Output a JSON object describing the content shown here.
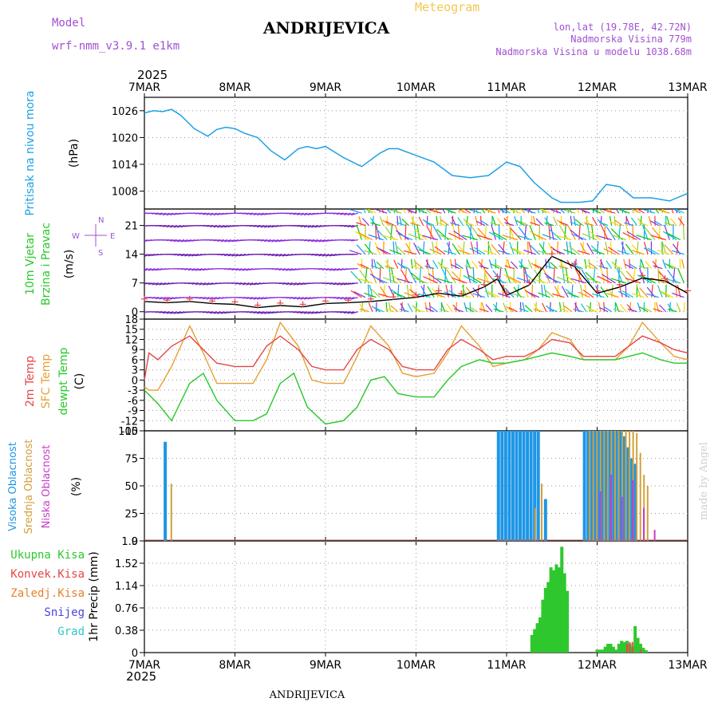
{
  "header": {
    "title": "ANDRIJEVICA",
    "product": "Meteogram",
    "model_label": "Model",
    "model_name": "wrf-nmm_v3.9.1 e1km",
    "coords": "lon,lat (19.78E, 42.72N)",
    "elevation": "Nadmorska Visina 779m",
    "model_elevation": "Nadmorska Visina u modelu 1038.68m",
    "watermark": "made by Angel",
    "footer": "ANDRIJEVICA",
    "year_top": "2025",
    "year_bottom": "2025"
  },
  "colors": {
    "pressure": "#1ea0e6",
    "temp2m": "#e64646",
    "sfc": "#e6a032",
    "dewpt": "#28c828",
    "high_cloud": "#1e96e6",
    "mid_cloud": "#d2a03c",
    "low_cloud": "#c83cc8",
    "total_precip": "#2ec82e",
    "conv_precip": "#e64646",
    "frozen_precip": "#e6822d",
    "snow": "#4646dc",
    "hail": "#2dc8c8",
    "purple_text": "#a050d2",
    "title_gold": "#f0c850"
  },
  "chart_data": [
    {
      "type": "line",
      "panel": "pressure",
      "ylabel_lines": [
        "Pritisak na nivou mora",
        "(hPa)"
      ],
      "yticks": [
        1008,
        1014,
        1020,
        1026
      ],
      "ylim": [
        1004,
        1029
      ],
      "x_categories": [
        "7MAR",
        "8MAR",
        "9MAR",
        "10MAR",
        "11MAR",
        "12MAR",
        "13MAR"
      ],
      "grid": true,
      "series": [
        {
          "x": [
            0,
            0.1,
            0.2,
            0.3,
            0.4,
            0.55,
            0.7,
            0.8,
            0.9,
            1.0,
            1.1,
            1.25,
            1.4,
            1.55,
            1.7,
            1.8,
            1.9,
            2.0,
            2.2,
            2.4,
            2.6,
            2.7,
            2.8,
            3.0,
            3.2,
            3.4,
            3.6,
            3.8,
            4.0,
            4.15,
            4.3,
            4.5,
            4.6,
            4.8,
            4.95,
            5.1,
            5.25,
            5.4,
            5.6,
            5.8,
            6.0
          ],
          "values": [
            1025.5,
            1026,
            1025.8,
            1026.3,
            1025,
            1022,
            1020.3,
            1021.8,
            1022.3,
            1022,
            1021,
            1020,
            1017,
            1015,
            1017.5,
            1018,
            1017.5,
            1018,
            1015.5,
            1013.5,
            1016.5,
            1017.5,
            1017.5,
            1016,
            1014.5,
            1011.5,
            1011,
            1011.5,
            1014.5,
            1013.5,
            1010,
            1006.5,
            1005.5,
            1005.5,
            1005.8,
            1009.5,
            1009,
            1006.5,
            1006.5,
            1005.8,
            1007.5
          ]
        }
      ]
    },
    {
      "type": "line",
      "panel": "wind",
      "ylabel_lines": [
        "10m Vjetar",
        "Brzina i Pravac",
        "(m/s)"
      ],
      "yticks": [
        0,
        7,
        14,
        21
      ],
      "ylim": [
        -1.8,
        25
      ],
      "compass_labels": [
        "N",
        "E",
        "S",
        "W"
      ],
      "grid": true,
      "series": [
        {
          "name": "Brzina",
          "x": [
            0,
            0.25,
            0.5,
            0.75,
            1.0,
            1.25,
            1.5,
            1.75,
            2.0,
            2.25,
            2.5,
            2.75,
            3.0,
            3.25,
            3.5,
            3.75,
            3.9,
            4.0,
            4.25,
            4.5,
            4.75,
            5.0,
            5.25,
            5.5,
            5.75,
            6.0
          ],
          "values": [
            2.5,
            2.2,
            2.5,
            2.0,
            1.8,
            1.0,
            1.5,
            1.2,
            2.0,
            2.2,
            2.5,
            3.0,
            3.5,
            4.5,
            3.8,
            6.0,
            8.0,
            4.0,
            6.5,
            13.5,
            11.0,
            4.5,
            6.0,
            8.2,
            7.5,
            4.5
          ]
        }
      ]
    },
    {
      "type": "line",
      "panel": "temperature",
      "ylabel_lines": [
        "2m Temp",
        "SFC Temp",
        "dewpt Temp",
        "(C)"
      ],
      "yticks": [
        -15,
        -12,
        -9,
        -6,
        -3,
        0,
        3,
        6,
        9,
        12,
        15,
        18
      ],
      "ylim": [
        -15,
        18
      ],
      "grid": true,
      "series": [
        {
          "name": "2m Temp",
          "x": [
            0,
            0.05,
            0.15,
            0.3,
            0.5,
            0.65,
            0.8,
            1.0,
            1.2,
            1.35,
            1.5,
            1.7,
            1.85,
            2.0,
            2.2,
            2.35,
            2.5,
            2.7,
            2.85,
            3.0,
            3.2,
            3.35,
            3.5,
            3.7,
            3.85,
            4.0,
            4.2,
            4.35,
            4.5,
            4.7,
            4.85,
            5.0,
            5.2,
            5.35,
            5.5,
            5.7,
            5.85,
            6.0
          ],
          "values": [
            0,
            8,
            6,
            10,
            13,
            9,
            5,
            4,
            4,
            10,
            13,
            9,
            4,
            3,
            3,
            9,
            12,
            9,
            4,
            3,
            3,
            9,
            12,
            9,
            6,
            7,
            7,
            9,
            12,
            11,
            7,
            7,
            7,
            10,
            13,
            11,
            9,
            8
          ]
        },
        {
          "name": "SFC Temp",
          "x": [
            0,
            0.05,
            0.15,
            0.3,
            0.5,
            0.65,
            0.8,
            1.0,
            1.2,
            1.35,
            1.5,
            1.7,
            1.85,
            2.0,
            2.2,
            2.35,
            2.5,
            2.7,
            2.85,
            3.0,
            3.2,
            3.35,
            3.5,
            3.7,
            3.85,
            4.0,
            4.2,
            4.35,
            4.5,
            4.7,
            4.85,
            5.0,
            5.2,
            5.35,
            5.5,
            5.7,
            5.85,
            6.0
          ],
          "values": [
            -2,
            -3,
            -3,
            4,
            16,
            8,
            -1,
            -1,
            -1,
            6,
            17,
            10,
            0,
            -1,
            -1,
            7,
            16,
            10,
            2,
            1,
            2,
            8,
            16,
            10,
            4,
            5,
            6,
            9,
            14,
            12,
            6,
            6,
            6,
            10,
            17,
            11,
            7,
            6
          ]
        },
        {
          "name": "dewpt Temp",
          "x": [
            0,
            0.15,
            0.3,
            0.5,
            0.65,
            0.8,
            1.0,
            1.2,
            1.35,
            1.5,
            1.65,
            1.8,
            2.0,
            2.2,
            2.35,
            2.5,
            2.65,
            2.8,
            3.0,
            3.2,
            3.35,
            3.5,
            3.7,
            3.85,
            4.0,
            4.2,
            4.35,
            4.5,
            4.7,
            4.85,
            5.0,
            5.2,
            5.35,
            5.5,
            5.7,
            5.85,
            6.0
          ],
          "values": [
            -3,
            -7,
            -12,
            -1,
            2,
            -6,
            -12,
            -12,
            -10,
            -1,
            2,
            -8,
            -13,
            -12,
            -8,
            0,
            1,
            -4,
            -5,
            -5,
            0,
            4,
            6,
            5,
            5,
            6,
            7,
            8,
            7,
            6,
            6,
            6,
            7,
            8,
            6,
            5,
            5
          ]
        }
      ]
    },
    {
      "type": "bar",
      "panel": "cloud",
      "ylabel_lines": [
        "Visoka Oblacnost",
        "Srednja Oblacnost",
        "Niska Oblacnost",
        "(%)"
      ],
      "yticks": [
        0,
        25,
        50,
        75,
        100
      ],
      "ylim": [
        0,
        100
      ],
      "grid": true,
      "series": [
        {
          "name": "Visoka Oblacnost",
          "x": [
            0.23,
            3.91,
            3.95,
            3.99,
            4.03,
            4.07,
            4.11,
            4.15,
            4.19,
            4.23,
            4.27,
            4.31,
            4.35,
            4.43,
            4.86,
            4.9,
            4.94,
            4.98,
            5.02,
            5.06,
            5.1,
            5.14,
            5.18,
            5.22,
            5.26,
            5.3,
            5.34,
            5.38,
            5.42
          ],
          "values": [
            90,
            100,
            100,
            100,
            100,
            100,
            100,
            100,
            100,
            100,
            100,
            100,
            100,
            38,
            100,
            100,
            100,
            100,
            100,
            100,
            100,
            100,
            100,
            100,
            100,
            95,
            85,
            75,
            70
          ]
        },
        {
          "name": "Srednja Oblacnost",
          "x": [
            0.28,
            4.3,
            4.37,
            4.9,
            4.94,
            4.98,
            5.02,
            5.06,
            5.1,
            5.14,
            5.18,
            5.22,
            5.26,
            5.3,
            5.34,
            5.38,
            5.42,
            5.46,
            5.5,
            5.54
          ],
          "values": [
            52,
            30,
            52,
            100,
            100,
            100,
            100,
            100,
            100,
            100,
            100,
            100,
            100,
            100,
            100,
            100,
            98,
            80,
            60,
            50
          ]
        },
        {
          "name": "Niska Oblacnost",
          "x": [
            5.0,
            5.12,
            5.24,
            5.36,
            5.48,
            5.6
          ],
          "values": [
            45,
            60,
            40,
            55,
            30,
            10
          ]
        }
      ]
    },
    {
      "type": "bar",
      "panel": "precipitation",
      "ylabel_lines": [
        "1hr Precip (mm)"
      ],
      "legend": [
        "Ukupna Kisa",
        "Konvek.Kisa",
        "Zaledj.Kisa",
        "Snijeg",
        "Grad"
      ],
      "yticks": [
        0,
        0.38,
        0.76,
        1.14,
        1.52,
        1.9
      ],
      "ylim": [
        0,
        1.9
      ],
      "grid": true,
      "series": [
        {
          "name": "Ukupna Kisa",
          "x": [
            4.28,
            4.31,
            4.34,
            4.37,
            4.4,
            4.43,
            4.46,
            4.49,
            4.52,
            4.55,
            4.58,
            4.61,
            4.64,
            4.67,
            5.0,
            5.03,
            5.06,
            5.09,
            5.12,
            5.15,
            5.18,
            5.21,
            5.24,
            5.27,
            5.3,
            5.33,
            5.36,
            5.39,
            5.42,
            5.45,
            5.48,
            5.51,
            5.54
          ],
          "values": [
            0.3,
            0.4,
            0.5,
            0.6,
            0.9,
            1.1,
            1.2,
            1.45,
            1.4,
            1.5,
            1.45,
            1.8,
            1.35,
            1.05,
            0.05,
            0.05,
            0.05,
            0.1,
            0.15,
            0.15,
            0.1,
            0.05,
            0.15,
            0.2,
            0.18,
            0.2,
            0.15,
            0.1,
            0.45,
            0.25,
            0.15,
            0.08,
            0.04
          ]
        },
        {
          "name": "Konvek.Kisa",
          "x": [
            5.33,
            5.36,
            5.39,
            5.48
          ],
          "values": [
            0.15,
            0.18,
            0.18,
            0.05
          ]
        }
      ]
    }
  ]
}
